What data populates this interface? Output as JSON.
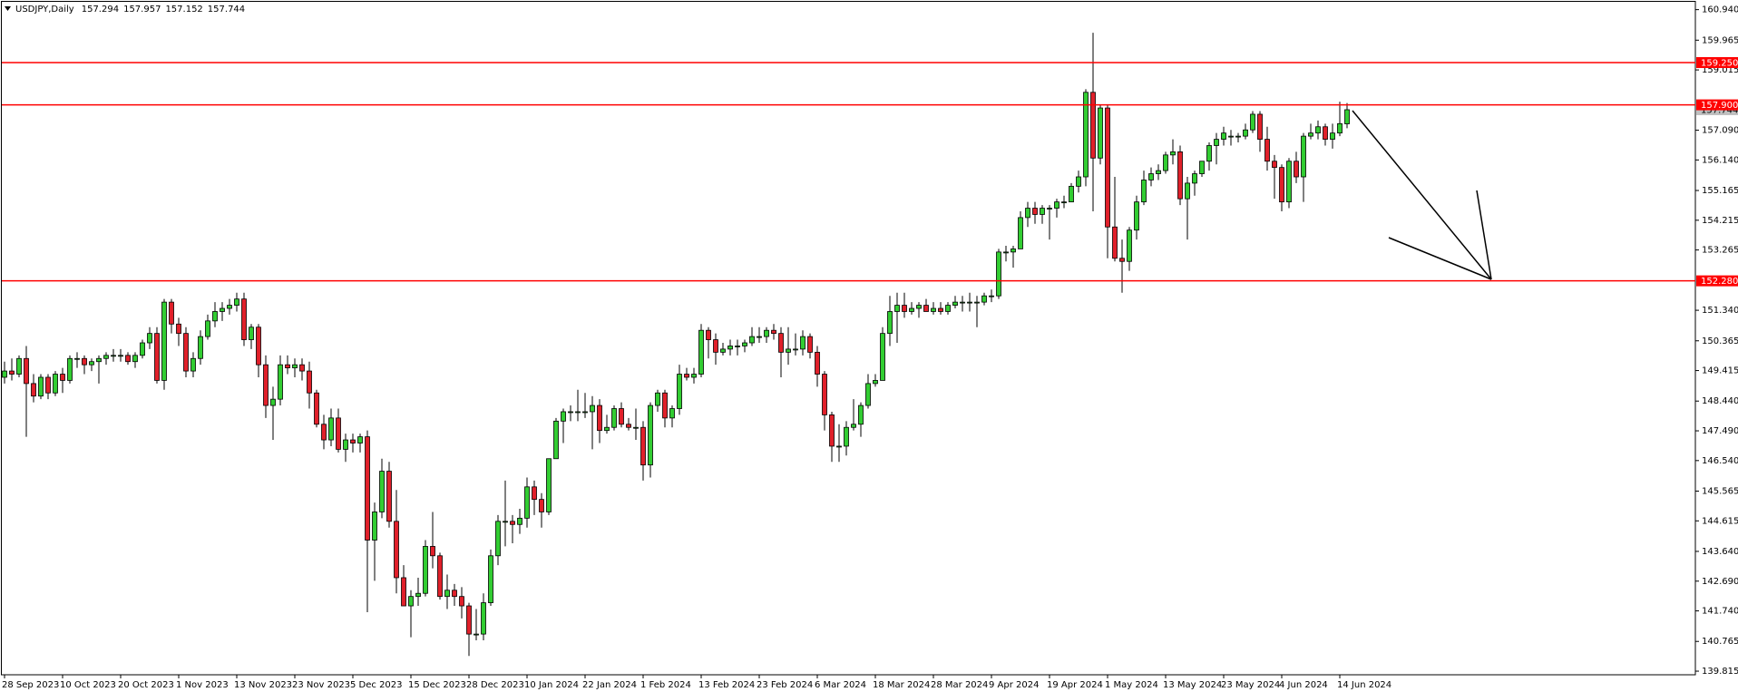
{
  "chart_data": {
    "type": "candlestick",
    "title": "USDJPY,Daily",
    "header_values": [
      157.294,
      157.957,
      157.152,
      157.744
    ],
    "up_color": "#32cd32",
    "down_color": "#e0202a",
    "ylim": [
      139.7,
      161.19
    ],
    "yticks": [
      {
        "value": 160.94,
        "label": "160.940"
      },
      159.965,
      159.015,
      {
        "value": 157.09,
        "label": "157.090"
      },
      {
        "value": 156.14,
        "label": "156.140"
      },
      155.165,
      154.215,
      153.265,
      {
        "value": 151.34,
        "label": "151.340"
      },
      150.365,
      149.415,
      {
        "value": 148.44,
        "label": "148.440"
      },
      {
        "value": 147.49,
        "label": "147.490"
      },
      {
        "value": 146.54,
        "label": "146.540"
      },
      145.565,
      144.615,
      {
        "value": 143.64,
        "label": "143.640"
      },
      {
        "value": 142.69,
        "label": "142.690"
      },
      {
        "value": 141.74,
        "label": "141.740"
      },
      140.765,
      139.815
    ],
    "levels": [
      {
        "value": 159.25,
        "label": "159.250",
        "color": "#ff0000"
      },
      {
        "value": 157.9,
        "label": "157.900",
        "color": "#ff0000"
      },
      {
        "value": 152.28,
        "label": "152.280",
        "color": "#ff0000"
      }
    ],
    "last_price": 157.744,
    "last_price_color": "#c0c0c0",
    "categories": [
      "28 Sep 2023",
      null,
      null,
      null,
      null,
      null,
      null,
      null,
      "10 Oct 2023",
      null,
      null,
      null,
      null,
      null,
      null,
      null,
      "20 Oct 2023",
      null,
      null,
      null,
      null,
      null,
      null,
      null,
      "1 Nov 2023",
      null,
      null,
      null,
      null,
      null,
      null,
      null,
      "13 Nov 2023",
      null,
      null,
      null,
      null,
      null,
      null,
      null,
      "23 Nov 2023",
      null,
      null,
      null,
      null,
      null,
      null,
      null,
      "5 Dec 2023",
      null,
      null,
      null,
      null,
      null,
      null,
      null,
      "15 Dec 2023",
      null,
      null,
      null,
      null,
      null,
      null,
      null,
      "28 Dec 2023",
      null,
      null,
      null,
      null,
      null,
      null,
      null,
      "10 Jan 2024",
      null,
      null,
      null,
      null,
      null,
      null,
      null,
      "22 Jan 2024",
      null,
      null,
      null,
      null,
      null,
      null,
      null,
      "1 Feb 2024",
      null,
      null,
      null,
      null,
      null,
      null,
      null,
      "13 Feb 2024",
      null,
      null,
      null,
      null,
      null,
      null,
      null,
      "23 Feb 2024",
      null,
      null,
      null,
      null,
      null,
      null,
      null,
      "6 Mar 2024",
      null,
      null,
      null,
      null,
      null,
      null,
      null,
      "18 Mar 2024",
      null,
      null,
      null,
      null,
      null,
      null,
      null,
      "28 Mar 2024",
      null,
      null,
      null,
      null,
      null,
      null,
      null,
      "9 Apr 2024",
      null,
      null,
      null,
      null,
      null,
      null,
      null,
      "19 Apr 2024",
      null,
      null,
      null,
      null,
      null,
      null,
      null,
      "1 May 2024",
      null,
      null,
      null,
      null,
      null,
      null,
      null,
      "13 May 2024",
      null,
      null,
      null,
      null,
      null,
      null,
      null,
      "23 May 2024",
      null,
      null,
      null,
      null,
      null,
      null,
      null,
      "4 Jun 2024",
      null,
      null,
      null,
      null,
      null,
      null,
      null,
      "14 Jun 2024",
      null
    ],
    "ohlc": [
      [
        149.2,
        149.7,
        149.0,
        149.4
      ],
      [
        149.4,
        149.8,
        149.1,
        149.3
      ],
      [
        149.3,
        149.9,
        149.2,
        149.8
      ],
      [
        149.8,
        150.2,
        147.3,
        149.0
      ],
      [
        149.0,
        149.3,
        148.4,
        148.6
      ],
      [
        148.6,
        149.3,
        148.5,
        149.2
      ],
      [
        149.2,
        149.3,
        148.5,
        148.7
      ],
      [
        148.7,
        149.4,
        148.6,
        149.3
      ],
      [
        149.3,
        149.5,
        148.7,
        149.1
      ],
      [
        149.1,
        149.9,
        149.0,
        149.8
      ],
      [
        149.8,
        150.0,
        149.5,
        149.8
      ],
      [
        149.8,
        149.9,
        149.3,
        149.6
      ],
      [
        149.6,
        149.8,
        149.4,
        149.7
      ],
      [
        149.7,
        149.9,
        149.0,
        149.8
      ],
      [
        149.8,
        150.0,
        149.6,
        149.9
      ],
      [
        149.9,
        150.1,
        149.7,
        149.9
      ],
      [
        149.9,
        150.1,
        149.7,
        149.9
      ],
      [
        149.9,
        150.0,
        149.6,
        149.7
      ],
      [
        149.7,
        150.0,
        149.5,
        149.9
      ],
      [
        149.9,
        150.4,
        149.8,
        150.3
      ],
      [
        150.3,
        150.8,
        150.1,
        150.6
      ],
      [
        150.6,
        150.8,
        149.0,
        149.1
      ],
      [
        149.1,
        151.7,
        148.8,
        151.6
      ],
      [
        151.6,
        151.7,
        150.6,
        150.9
      ],
      [
        150.9,
        151.1,
        150.2,
        150.6
      ],
      [
        150.6,
        150.8,
        149.2,
        149.4
      ],
      [
        149.4,
        150.0,
        149.2,
        149.8
      ],
      [
        149.8,
        150.7,
        149.6,
        150.5
      ],
      [
        150.5,
        151.2,
        150.4,
        151.0
      ],
      [
        151.0,
        151.6,
        150.8,
        151.3
      ],
      [
        151.3,
        151.6,
        151.0,
        151.4
      ],
      [
        151.4,
        151.7,
        151.2,
        151.5
      ],
      [
        151.5,
        151.9,
        151.3,
        151.7
      ],
      [
        151.7,
        151.9,
        150.2,
        150.4
      ],
      [
        150.4,
        150.9,
        150.1,
        150.8
      ],
      [
        150.8,
        150.9,
        149.2,
        149.6
      ],
      [
        149.6,
        149.9,
        147.9,
        148.3
      ],
      [
        148.3,
        148.9,
        147.2,
        148.5
      ],
      [
        148.5,
        149.9,
        148.3,
        149.6
      ],
      [
        149.6,
        149.9,
        149.3,
        149.5
      ],
      [
        149.5,
        149.8,
        149.2,
        149.6
      ],
      [
        149.6,
        149.8,
        149.1,
        149.4
      ],
      [
        149.4,
        149.7,
        148.2,
        148.7
      ],
      [
        148.7,
        148.8,
        147.6,
        147.7
      ],
      [
        147.7,
        148.0,
        146.9,
        147.2
      ],
      [
        147.2,
        148.2,
        147.0,
        147.9
      ],
      [
        147.9,
        148.2,
        146.8,
        146.9
      ],
      [
        146.9,
        147.4,
        146.5,
        147.2
      ],
      [
        147.2,
        147.4,
        146.8,
        147.1
      ],
      [
        147.1,
        147.4,
        146.8,
        147.3
      ],
      [
        147.3,
        147.5,
        141.7,
        144.0
      ],
      [
        144.0,
        145.2,
        142.7,
        144.9
      ],
      [
        144.9,
        146.6,
        144.7,
        146.2
      ],
      [
        146.2,
        146.5,
        144.4,
        144.6
      ],
      [
        144.6,
        145.6,
        142.3,
        142.8
      ],
      [
        142.8,
        143.2,
        141.9,
        141.9
      ],
      [
        141.9,
        142.4,
        140.9,
        142.2
      ],
      [
        142.2,
        142.8,
        141.9,
        142.3
      ],
      [
        142.3,
        144.0,
        142.2,
        143.8
      ],
      [
        143.8,
        144.9,
        143.1,
        143.5
      ],
      [
        143.5,
        143.6,
        142.1,
        142.2
      ],
      [
        142.2,
        142.9,
        141.8,
        142.4
      ],
      [
        142.4,
        142.6,
        141.9,
        142.2
      ],
      [
        142.2,
        142.5,
        141.5,
        141.9
      ],
      [
        141.9,
        142.0,
        140.3,
        141.0
      ],
      [
        141.0,
        141.8,
        140.8,
        141.0
      ],
      [
        141.0,
        142.3,
        140.8,
        142.0
      ],
      [
        142.0,
        143.7,
        141.9,
        143.5
      ],
      [
        143.5,
        144.8,
        143.2,
        144.6
      ],
      [
        144.6,
        145.9,
        143.8,
        144.6
      ],
      [
        144.6,
        144.8,
        143.9,
        144.5
      ],
      [
        144.5,
        145.0,
        144.2,
        144.7
      ],
      [
        144.7,
        146.0,
        144.4,
        145.7
      ],
      [
        145.7,
        145.9,
        144.8,
        145.3
      ],
      [
        145.3,
        145.5,
        144.4,
        144.9
      ],
      [
        144.9,
        146.6,
        144.8,
        146.6
      ],
      [
        146.6,
        147.9,
        146.6,
        147.8
      ],
      [
        147.8,
        148.2,
        147.1,
        148.1
      ],
      [
        148.1,
        148.3,
        147.8,
        148.1
      ],
      [
        148.1,
        148.8,
        147.8,
        148.1
      ],
      [
        148.1,
        148.7,
        147.9,
        148.1
      ],
      [
        148.1,
        148.6,
        146.9,
        148.3
      ],
      [
        148.3,
        148.5,
        147.1,
        147.5
      ],
      [
        147.5,
        148.0,
        147.4,
        147.6
      ],
      [
        147.6,
        148.3,
        147.5,
        148.2
      ],
      [
        148.2,
        148.4,
        147.6,
        147.7
      ],
      [
        147.7,
        147.9,
        147.5,
        147.6
      ],
      [
        147.6,
        148.2,
        147.2,
        147.6
      ],
      [
        147.6,
        147.8,
        145.9,
        146.4
      ],
      [
        146.4,
        148.4,
        146.0,
        148.3
      ],
      [
        148.3,
        148.8,
        148.1,
        148.7
      ],
      [
        148.7,
        148.8,
        147.6,
        147.9
      ],
      [
        147.9,
        148.3,
        147.6,
        148.2
      ],
      [
        148.2,
        149.6,
        148.0,
        149.3
      ],
      [
        149.3,
        149.5,
        149.1,
        149.2
      ],
      [
        149.2,
        149.5,
        149.0,
        149.3
      ],
      [
        149.3,
        150.9,
        149.2,
        150.7
      ],
      [
        150.7,
        150.8,
        149.8,
        150.4
      ],
      [
        150.4,
        150.6,
        149.6,
        150.0
      ],
      [
        150.0,
        150.3,
        149.9,
        150.1
      ],
      [
        150.1,
        150.4,
        149.9,
        150.2
      ],
      [
        150.2,
        150.4,
        149.9,
        150.2
      ],
      [
        150.2,
        150.4,
        150.0,
        150.3
      ],
      [
        150.3,
        150.8,
        150.2,
        150.5
      ],
      [
        150.5,
        150.8,
        150.3,
        150.5
      ],
      [
        150.5,
        150.8,
        150.3,
        150.7
      ],
      [
        150.7,
        150.9,
        150.4,
        150.6
      ],
      [
        150.6,
        150.8,
        149.2,
        150.0
      ],
      [
        150.0,
        150.8,
        149.6,
        150.1
      ],
      [
        150.1,
        150.6,
        149.9,
        150.1
      ],
      [
        150.1,
        150.7,
        149.9,
        150.5
      ],
      [
        150.5,
        150.6,
        149.8,
        150.0
      ],
      [
        150.0,
        150.2,
        148.9,
        149.3
      ],
      [
        149.3,
        149.4,
        147.5,
        148.0
      ],
      [
        148.0,
        148.1,
        146.5,
        147.0
      ],
      [
        147.0,
        147.7,
        146.5,
        147.0
      ],
      [
        147.0,
        147.8,
        146.7,
        147.6
      ],
      [
        147.6,
        148.5,
        147.5,
        147.7
      ],
      [
        147.7,
        148.4,
        147.3,
        148.3
      ],
      [
        148.3,
        149.3,
        148.2,
        149.0
      ],
      [
        149.0,
        149.3,
        148.9,
        149.1
      ],
      [
        149.1,
        150.8,
        149.1,
        150.6
      ],
      [
        150.6,
        151.8,
        150.2,
        151.3
      ],
      [
        151.3,
        151.9,
        150.3,
        151.5
      ],
      [
        151.5,
        151.9,
        151.1,
        151.3
      ],
      [
        151.3,
        151.6,
        151.2,
        151.4
      ],
      [
        151.4,
        151.6,
        151.1,
        151.5
      ],
      [
        151.5,
        151.7,
        151.3,
        151.3
      ],
      [
        151.3,
        151.6,
        151.2,
        151.4
      ],
      [
        151.4,
        151.6,
        151.2,
        151.3
      ],
      [
        151.3,
        151.6,
        151.2,
        151.5
      ],
      [
        151.5,
        151.8,
        151.4,
        151.6
      ],
      [
        151.6,
        151.8,
        151.3,
        151.6
      ],
      [
        151.6,
        151.9,
        151.3,
        151.6
      ],
      [
        151.6,
        151.8,
        150.8,
        151.6
      ],
      [
        151.6,
        151.9,
        151.5,
        151.8
      ],
      [
        151.8,
        152.0,
        151.6,
        151.8
      ],
      [
        151.8,
        153.3,
        151.7,
        153.2
      ],
      [
        153.2,
        153.4,
        152.9,
        153.2
      ],
      [
        153.2,
        153.4,
        152.7,
        153.3
      ],
      [
        153.3,
        154.5,
        153.3,
        154.3
      ],
      [
        154.3,
        154.8,
        154.0,
        154.6
      ],
      [
        154.6,
        154.8,
        154.1,
        154.4
      ],
      [
        154.4,
        154.7,
        154.1,
        154.6
      ],
      [
        154.6,
        154.7,
        153.6,
        154.6
      ],
      [
        154.6,
        154.9,
        154.3,
        154.8
      ],
      [
        154.8,
        155.0,
        154.6,
        154.8
      ],
      [
        154.8,
        155.4,
        154.8,
        155.3
      ],
      [
        155.3,
        155.8,
        155.1,
        155.6
      ],
      [
        155.6,
        158.4,
        155.3,
        158.3
      ],
      [
        158.3,
        160.2,
        154.5,
        156.2
      ],
      [
        156.2,
        157.9,
        156.0,
        157.8
      ],
      [
        157.8,
        157.9,
        153.0,
        154.0
      ],
      [
        154.0,
        155.6,
        152.9,
        153.0
      ],
      [
        153.0,
        153.6,
        151.9,
        152.9
      ],
      [
        152.9,
        154.0,
        152.6,
        153.9
      ],
      [
        153.9,
        155.0,
        153.6,
        154.8
      ],
      [
        154.8,
        155.8,
        154.7,
        155.5
      ],
      [
        155.5,
        155.9,
        155.3,
        155.7
      ],
      [
        155.7,
        156.0,
        155.5,
        155.8
      ],
      [
        155.8,
        156.4,
        155.7,
        156.3
      ],
      [
        156.3,
        156.8,
        156.0,
        156.4
      ],
      [
        156.4,
        156.6,
        154.7,
        154.9
      ],
      [
        154.9,
        155.6,
        153.6,
        155.4
      ],
      [
        155.4,
        155.8,
        155.0,
        155.7
      ],
      [
        155.7,
        156.1,
        155.6,
        156.1
      ],
      [
        156.1,
        156.7,
        155.8,
        156.6
      ],
      [
        156.6,
        157.0,
        156.0,
        156.8
      ],
      [
        156.8,
        157.2,
        156.6,
        157.0
      ],
      [
        156.9,
        157.1,
        156.6,
        156.9
      ],
      [
        156.9,
        157.0,
        156.7,
        156.9
      ],
      [
        156.9,
        157.3,
        156.8,
        157.1
      ],
      [
        157.1,
        157.7,
        157.0,
        157.6
      ],
      [
        157.6,
        157.7,
        156.4,
        156.8
      ],
      [
        156.8,
        157.2,
        155.8,
        156.1
      ],
      [
        156.1,
        156.3,
        154.9,
        155.9
      ],
      [
        155.9,
        156.0,
        154.5,
        154.8
      ],
      [
        154.8,
        156.2,
        154.6,
        156.1
      ],
      [
        156.1,
        156.4,
        155.4,
        155.6
      ],
      [
        155.6,
        157.0,
        154.8,
        156.9
      ],
      [
        156.9,
        157.3,
        156.8,
        157.0
      ],
      [
        157.0,
        157.4,
        156.8,
        157.2
      ],
      [
        157.2,
        157.3,
        156.6,
        156.8
      ],
      [
        156.8,
        157.3,
        156.5,
        157.0
      ],
      [
        157.0,
        158.0,
        156.9,
        157.3
      ],
      [
        157.294,
        157.957,
        157.152,
        157.744
      ]
    ]
  }
}
